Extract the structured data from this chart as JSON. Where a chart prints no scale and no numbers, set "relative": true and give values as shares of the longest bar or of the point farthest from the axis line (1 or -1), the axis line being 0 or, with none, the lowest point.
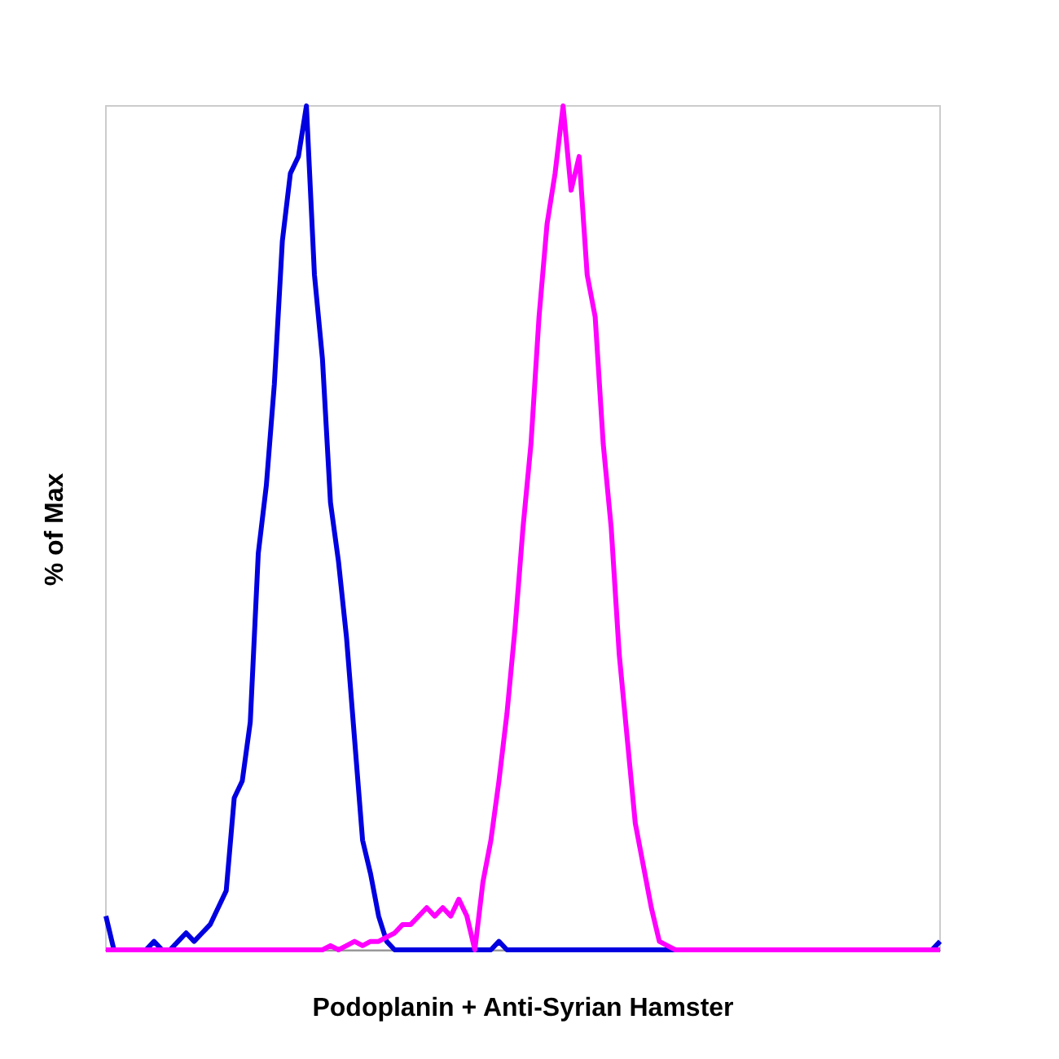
{
  "chart_data": {
    "type": "line",
    "xlabel": "Podoplanin + Anti-Syrian Hamster",
    "ylabel": "% of Max",
    "relative": true,
    "categories": [
      null,
      null,
      null,
      null,
      null,
      null,
      null,
      null,
      null,
      null,
      null,
      null,
      null,
      null,
      null,
      null,
      null,
      null,
      null,
      null,
      null,
      null,
      null,
      null,
      null,
      null,
      null,
      null,
      null,
      null,
      null,
      null,
      null,
      null,
      null,
      null,
      null,
      null,
      null,
      null,
      null,
      null,
      null,
      null,
      null,
      null,
      null,
      null,
      null,
      null,
      null,
      null,
      null,
      null,
      null,
      null,
      null,
      null,
      null,
      null,
      null,
      null,
      null,
      null,
      null,
      null,
      null,
      null,
      null,
      null,
      null,
      null,
      null,
      null,
      null,
      null,
      null,
      null,
      null,
      null,
      null,
      null,
      null,
      null,
      null,
      null,
      null,
      null,
      null,
      null,
      null,
      null,
      null,
      null,
      null,
      null,
      null,
      null,
      null,
      null,
      null,
      null,
      null,
      null,
      null
    ],
    "series": [
      {
        "color": "#0000e0",
        "values": [
          0.04,
          0,
          0,
          0,
          0,
          0,
          0.01,
          0,
          0,
          0.01,
          0.02,
          0.01,
          0.02,
          0.03,
          0.05,
          0.07,
          0.18,
          0.2,
          0.27,
          0.47,
          0.55,
          0.67,
          0.84,
          0.92,
          0.94,
          1,
          0.8,
          0.7,
          0.53,
          0.46,
          0.37,
          0.25,
          0.13,
          0.09,
          0.04,
          0.01,
          0,
          0,
          0,
          0,
          0,
          0,
          0,
          0,
          0,
          0,
          0,
          0,
          0,
          0.01,
          0,
          0,
          0,
          0,
          0,
          0,
          0,
          0,
          0,
          0,
          0,
          0,
          0,
          0,
          0,
          0,
          0,
          0,
          0,
          0,
          0,
          0,
          0,
          0,
          0,
          0,
          0,
          0,
          0,
          0,
          0,
          0,
          0,
          0,
          0,
          0,
          0,
          0,
          0,
          0,
          0,
          0,
          0,
          0,
          0,
          0,
          0,
          0,
          0,
          0,
          0,
          0,
          0,
          0,
          0.01
        ]
      },
      {
        "color": "#ff00ff",
        "values": [
          0,
          0,
          0,
          0,
          0,
          0,
          0,
          0,
          0,
          0,
          0,
          0,
          0,
          0,
          0,
          0,
          0,
          0,
          0,
          0,
          0,
          0,
          0,
          0,
          0,
          0,
          0,
          0,
          0.005,
          0,
          0.005,
          0.01,
          0.005,
          0.01,
          0.01,
          0.015,
          0.02,
          0.03,
          0.03,
          0.04,
          0.05,
          0.04,
          0.05,
          0.04,
          0.06,
          0.04,
          0,
          0.08,
          0.13,
          0.2,
          0.28,
          0.38,
          0.5,
          0.6,
          0.75,
          0.86,
          0.92,
          1,
          0.9,
          0.94,
          0.8,
          0.75,
          0.6,
          0.5,
          0.35,
          0.25,
          0.15,
          0.1,
          0.05,
          0.01,
          0.005,
          0,
          0,
          0,
          0,
          0,
          0,
          0,
          0,
          0,
          0,
          0,
          0,
          0,
          0,
          0,
          0,
          0,
          0,
          0,
          0,
          0,
          0,
          0,
          0,
          0,
          0,
          0,
          0,
          0,
          0,
          0,
          0,
          0,
          0
        ]
      }
    ]
  }
}
